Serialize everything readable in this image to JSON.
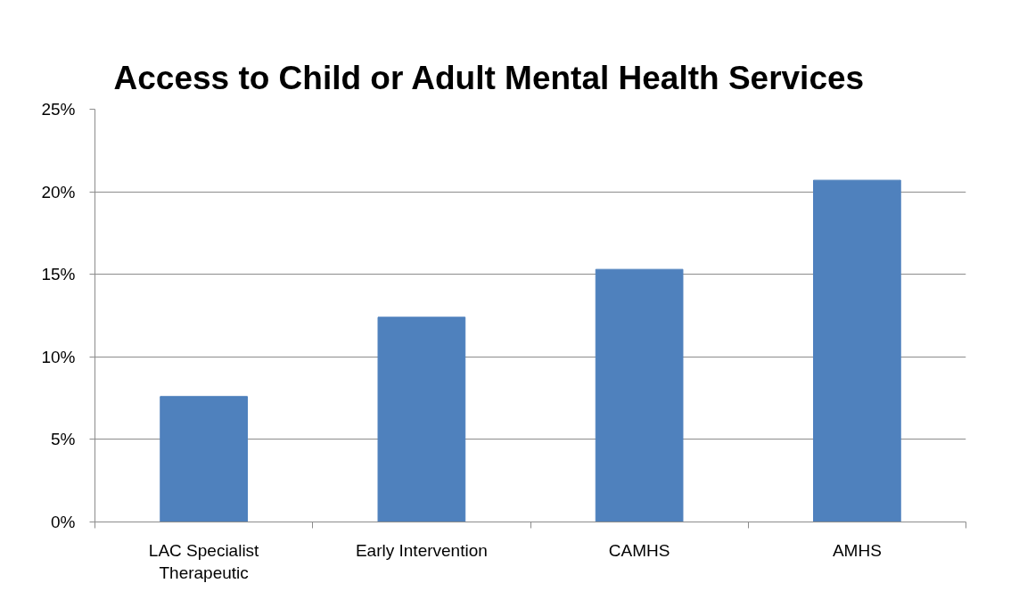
{
  "chart_data": {
    "type": "bar",
    "title": "Access to Child or Adult Mental Health Services",
    "categories": [
      "LAC Specialist Therapeutic",
      "Early Intervention",
      "CAMHS",
      "AMHS"
    ],
    "values": [
      7.6,
      12.4,
      15.3,
      20.7
    ],
    "color": "#4f81bd",
    "ylim": [
      0,
      25
    ],
    "yticks": [
      {
        "value": 0,
        "label": "0%"
      },
      {
        "value": 5,
        "label": "5%"
      },
      {
        "value": 10,
        "label": "10%"
      },
      {
        "value": 15,
        "label": "15%"
      },
      {
        "value": 20,
        "label": "20%"
      },
      {
        "value": 25,
        "label": "25%"
      }
    ],
    "grid": "y"
  }
}
